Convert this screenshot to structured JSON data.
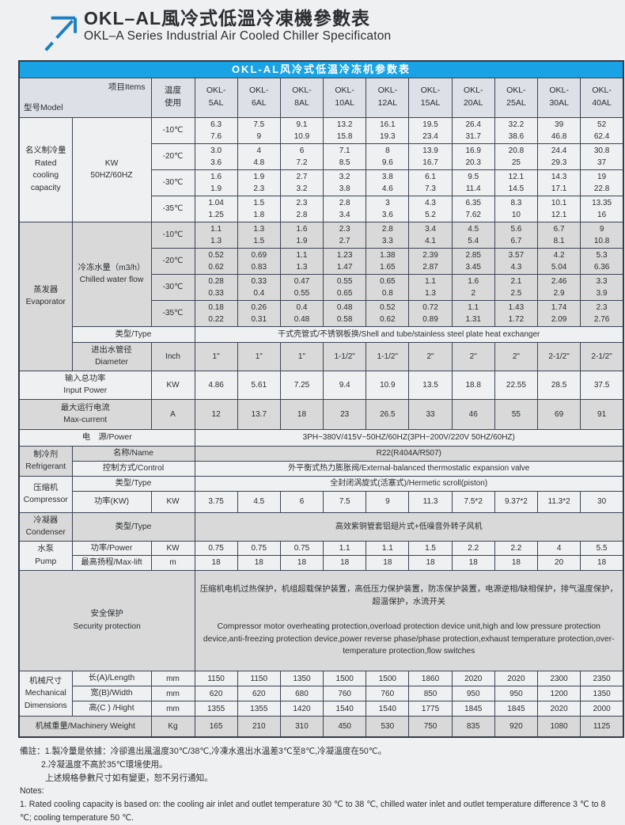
{
  "colors": {
    "accent_blue": "#1aa3e4",
    "logo_blue": "#1b7fc4",
    "row_gray": "#d9d9d9",
    "header_gray": "#dde0e6",
    "border": "#3c4454"
  },
  "page": {
    "title_cn": "OKL–AL風冷式低溫冷凍機參數表",
    "title_en": "OKL–A Series Industrial Air Cooled Chiller Specificaton"
  },
  "table": {
    "banner": "OKL-AL风冷式低温冷冻机参数表",
    "header": {
      "model_label": "型号Model",
      "items_label": "项目Items",
      "temp_label": "温度\n使用"
    },
    "columns": [
      "OKL-\n5AL",
      "OKL-\n6AL",
      "OKL-\n8AL",
      "OKL-\n10AL",
      "OKL-\n12AL",
      "OKL-\n15AL",
      "OKL-\n20AL",
      "OKL-\n25AL",
      "OKL-\n30AL",
      "OKL-\n40AL"
    ],
    "cooling": {
      "label": "名义制冷量\nRated\ncooling\ncapacity",
      "unit": "KW\n50HZ/60HZ",
      "rows": [
        {
          "temp": "-10℃",
          "values": [
            "6.3\n7.6",
            "7.5\n9",
            "9.1\n10.9",
            "13.2\n15.8",
            "16.1\n19.3",
            "19.5\n23.4",
            "26.4\n31.7",
            "32.2\n38.6",
            "39\n46.8",
            "52\n62.4"
          ]
        },
        {
          "temp": "-20℃",
          "values": [
            "3.0\n3.6",
            "4\n4.8",
            "6\n7.2",
            "7.1\n8.5",
            "8\n9.6",
            "13.9\n16.7",
            "16.9\n20.3",
            "20.8\n25",
            "24.4\n29.3",
            "30.8\n37"
          ]
        },
        {
          "temp": "-30℃",
          "values": [
            "1.6\n1.9",
            "1.9\n2.3",
            "2.7\n3.2",
            "3.2\n3.8",
            "3.8\n4.6",
            "6.1\n7.3",
            "9.5\n11.4",
            "12.1\n14.5",
            "14.3\n17.1",
            "19\n22.8"
          ]
        },
        {
          "temp": "-35℃",
          "values": [
            "1.04\n1.25",
            "1.5\n1.8",
            "2.3\n2.8",
            "2.8\n3.4",
            "3\n3.6",
            "4.3\n5.2",
            "6.35\n7.62",
            "8.3\n10",
            "10.1\n12.1",
            "13.35\n16"
          ]
        }
      ]
    },
    "evaporator": {
      "label": "蒸发器\nEvaporator",
      "flow_label": "冷冻水量（m3/h）\nChilled water flow",
      "rows": [
        {
          "temp": "-10℃",
          "values": [
            "1.1\n1.3",
            "1.3\n1.5",
            "1.6\n1.9",
            "2.3\n2.7",
            "2.8\n3.3",
            "3.4\n4.1",
            "4.5\n5.4",
            "5.6\n6.7",
            "6.7\n8.1",
            "9\n10.8"
          ]
        },
        {
          "temp": "-20℃",
          "values": [
            "0.52\n0.62",
            "0.69\n0.83",
            "1.1\n1.3",
            "1.23\n1.47",
            "1.38\n1.65",
            "2.39\n2.87",
            "2.85\n3.45",
            "3.57\n4.3",
            "4.2\n5.04",
            "5.3\n6.36"
          ]
        },
        {
          "temp": "-30℃",
          "values": [
            "0.28\n0.33",
            "0.33\n0.4",
            "0.47\n0.55",
            "0.55\n0.65",
            "0.65\n0.8",
            "1.1\n1.3",
            "1.6\n2",
            "2.1\n2.5",
            "2.46\n2.9",
            "3.3\n3.9"
          ]
        },
        {
          "temp": "-35℃",
          "values": [
            "0.18\n0.22",
            "0.26\n0.31",
            "0.4\n0.48",
            "0.48\n0.58",
            "0.52\n0.62",
            "0.72\n0.89",
            "1.1\n1.31",
            "1.43\n1.72",
            "1.74\n2.09",
            "2.3\n2.76"
          ]
        }
      ],
      "type_label": "类型/Type",
      "type_value": "干式壳管式/不锈钢板换/Shell and tube/stainless steel plate heat exchanger",
      "diameter_label": "进出水管径\nDiameter",
      "diameter_unit": "Inch",
      "diameter_values": [
        "1\"",
        "1\"",
        "1\"",
        "1-1/2\"",
        "1-1/2\"",
        "2\"",
        "2\"",
        "2\"",
        "2-1/2\"",
        "2-1/2\""
      ]
    },
    "input_power": {
      "label": "输入总功率\nInput Power",
      "unit": "KW",
      "values": [
        "4.86",
        "5.61",
        "7.25",
        "9.4",
        "10.9",
        "13.5",
        "18.8",
        "22.55",
        "28.5",
        "37.5"
      ]
    },
    "max_current": {
      "label": "最大运行电流\nMax-current",
      "unit": "A",
      "values": [
        "12",
        "13.7",
        "18",
        "23",
        "26.5",
        "33",
        "46",
        "55",
        "69",
        "91"
      ]
    },
    "power_supply": {
      "label": "电　源/Power",
      "value": "3PH~380V/415V~50HZ/60HZ(3PH~200V/220V 50HZ/60HZ)"
    },
    "refrigerant": {
      "label": "制冷剂\nRefrigerant",
      "name_label": "名称/Name",
      "name_value": "R22(R404A/R507)",
      "control_label": "控制方式/Control",
      "control_value": "外平衡式热力膨胀阀/External-balanced thermostatic expansion valve"
    },
    "compressor": {
      "label": "压缩机\nCompressor",
      "type_label": "类型/Type",
      "type_value": "全封闭涡旋式(活塞式)/Hermetic scroll(piston)",
      "power_label": "功率(KW)",
      "power_unit": "KW",
      "power_values": [
        "3.75",
        "4.5",
        "6",
        "7.5",
        "9",
        "11.3",
        "7.5*2",
        "9.37*2",
        "11.3*2",
        "30"
      ]
    },
    "condenser": {
      "label": "冷凝器\nCondenser",
      "type_label": "类型/Type",
      "type_value": "高效紫铜管套铝翅片式+低噪音外转子风机"
    },
    "pump": {
      "label": "水泵\nPump",
      "power_label": "功率/Power",
      "power_unit": "KW",
      "power_values": [
        "0.75",
        "0.75",
        "0.75",
        "1.1",
        "1.1",
        "1.5",
        "2.2",
        "2.2",
        "4",
        "5.5"
      ],
      "lift_label": "最高扬程/Max-lift",
      "lift_unit": "m",
      "lift_values": [
        "18",
        "18",
        "18",
        "18",
        "18",
        "18",
        "18",
        "18",
        "20",
        "18"
      ]
    },
    "security": {
      "label": "安全保护\nSecurity protection",
      "text_cn": "压缩机电机过热保护，机组超载保护装置，高低压力保护装置，防冻保护装置，电源逆相/缺相保护，排气温度保护，超温保护，水流开关",
      "text_en": "Compressor motor overheating protection,overload protection device unit,high and low pressure protection device,anti-freezing protection device,power reverse phase/phase protection,exhaust temperature protection,over-temperature protection,flow switches"
    },
    "dimensions": {
      "label": "机械尺寸\nMechanical\nDimensions",
      "rows": [
        {
          "label": "长(A)/Length",
          "unit": "mm",
          "values": [
            "1150",
            "1150",
            "1350",
            "1500",
            "1500",
            "1860",
            "2020",
            "2020",
            "2300",
            "2350"
          ]
        },
        {
          "label": "宽(B)/Width",
          "unit": "mm",
          "values": [
            "620",
            "620",
            "680",
            "760",
            "760",
            "850",
            "950",
            "950",
            "1200",
            "1350"
          ]
        },
        {
          "label": "高(C ) /Hight",
          "unit": "mm",
          "values": [
            "1355",
            "1355",
            "1420",
            "1540",
            "1540",
            "1775",
            "1845",
            "1845",
            "2020",
            "2000"
          ]
        }
      ]
    },
    "weight": {
      "label": "机械重量/Machinery Weight",
      "unit": "Kg",
      "values": [
        "165",
        "210",
        "310",
        "450",
        "530",
        "750",
        "835",
        "920",
        "1080",
        "1125"
      ]
    }
  },
  "notes": {
    "line1": "備註：1.製冷量是依據：冷卻進出風溫度30℃/38℃,冷凍水進出水溫差3℃至8℃,冷凝溫度在50℃。",
    "line2": "2.冷凝溫度不高於35℃環境使用。",
    "line3": "上述規格參數尺寸如有變更，恕不另行通知。",
    "line4": "Notes:",
    "line5": "1. Rated cooling capacity is based on: the cooling air inlet and outlet temperature 30 ℃ to 38 ℃, chilled water inlet and outlet temperature difference 3 ℃ to 8 ℃; cooling temperature 50 ℃."
  }
}
